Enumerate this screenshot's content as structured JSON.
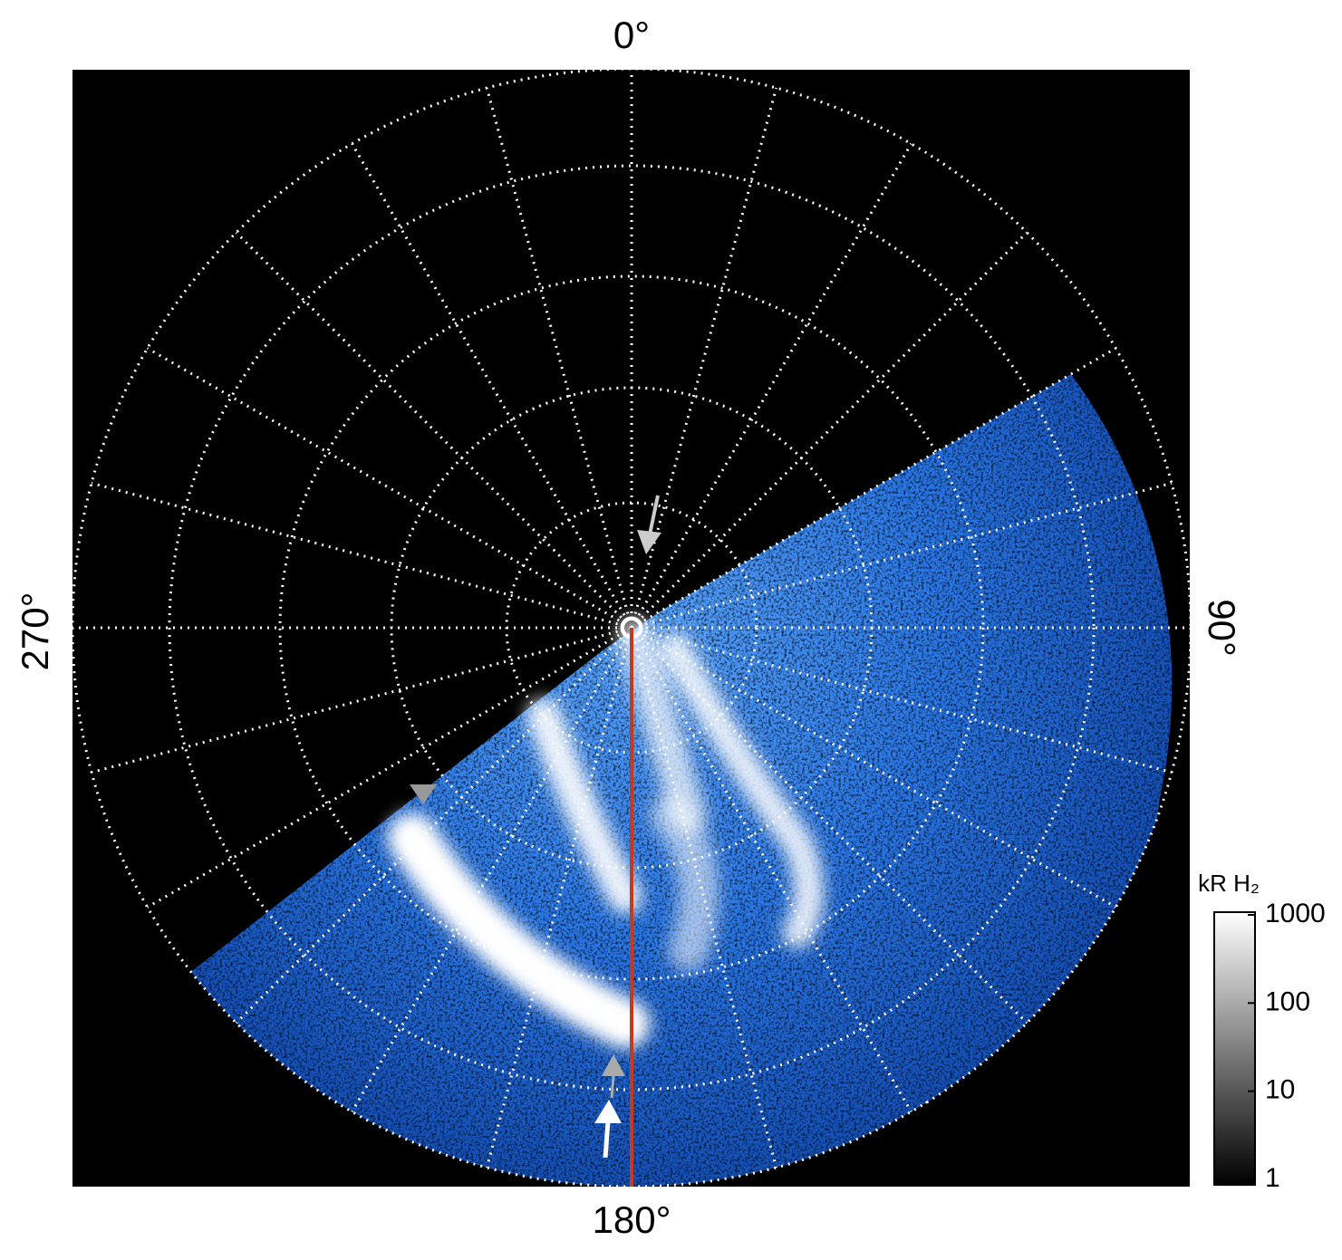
{
  "figure": {
    "angle_labels": [
      "0°",
      "90°",
      "180°",
      "270°"
    ],
    "colorbar": {
      "title": "kR H₂",
      "scale": "log",
      "lim": [
        1,
        1000
      ],
      "ticks": [
        1,
        10,
        100,
        1000
      ]
    }
  }
}
